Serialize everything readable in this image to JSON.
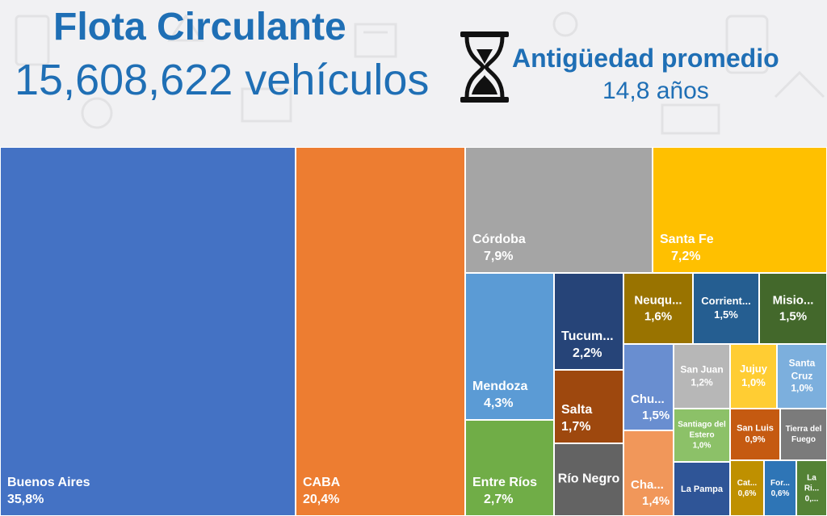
{
  "header": {
    "title": "Flota Circulante",
    "total": "15,608,622 vehículos",
    "age_label": "Antigüedad promedio",
    "age_value": "14,8 años"
  },
  "chart_data": {
    "type": "treemap",
    "unit": "%",
    "items": [
      {
        "name": "Buenos Aires",
        "label": "Buenos Aires",
        "value": 35.8,
        "display": "35,8%",
        "color": "#4472c4"
      },
      {
        "name": "CABA",
        "label": "CABA",
        "value": 20.4,
        "display": "20,4%",
        "color": "#ed7d31"
      },
      {
        "name": "Córdoba",
        "label": "Córdoba",
        "value": 7.9,
        "display": "7,9%",
        "color": "#a5a5a5"
      },
      {
        "name": "Santa Fe",
        "label": "Santa Fe",
        "value": 7.2,
        "display": "7,2%",
        "color": "#ffc000"
      },
      {
        "name": "Mendoza",
        "label": "Mendoza",
        "value": 4.3,
        "display": "4,3%",
        "color": "#5b9bd5"
      },
      {
        "name": "Entre Ríos",
        "label": "Entre Ríos",
        "value": 2.7,
        "display": "2,7%",
        "color": "#70ad47"
      },
      {
        "name": "Tucumán",
        "label": "Tucum...",
        "value": 2.2,
        "display": "2,2%",
        "color": "#264478"
      },
      {
        "name": "Salta",
        "label": "Salta",
        "value": 1.7,
        "display": "1,7%",
        "color": "#9e480e"
      },
      {
        "name": "Río Negro",
        "label": "Río Negro",
        "value": 1.6,
        "display": "",
        "color": "#636363"
      },
      {
        "name": "Neuquén",
        "label": "Neuqu...",
        "value": 1.6,
        "display": "1,6%",
        "color": "#997300"
      },
      {
        "name": "Corrientes",
        "label": "Corrient...",
        "value": 1.5,
        "display": "1,5%",
        "color": "#255e91"
      },
      {
        "name": "Misiones",
        "label": "Misio...",
        "value": 1.5,
        "display": "1,5%",
        "color": "#43682b"
      },
      {
        "name": "Chubut",
        "label": "Chu...",
        "value": 1.5,
        "display": "1,5%",
        "color": "#698ed0"
      },
      {
        "name": "Chaco",
        "label": "Cha...",
        "value": 1.4,
        "display": "1,4%",
        "color": "#f1975a"
      },
      {
        "name": "San Juan",
        "label": "San Juan",
        "value": 1.2,
        "display": "1,2%",
        "color": "#b7b7b7"
      },
      {
        "name": "Jujuy",
        "label": "Jujuy",
        "value": 1.0,
        "display": "1,0%",
        "color": "#ffcd33"
      },
      {
        "name": "Santa Cruz",
        "label": "Santa Cruz",
        "value": 1.0,
        "display": "1,0%",
        "color": "#7cafdd"
      },
      {
        "name": "Santiago del Estero",
        "label": "Santiago del Estero",
        "value": 1.0,
        "display": "1,0%",
        "color": "#8cc168"
      },
      {
        "name": "San Luis",
        "label": "San Luis",
        "value": 0.9,
        "display": "0,9%",
        "color": "#c55a11"
      },
      {
        "name": "Tierra del Fuego",
        "label": "Tierra del Fuego",
        "value": 0.7,
        "display": "",
        "color": "#7b7b7b"
      },
      {
        "name": "La Pampa",
        "label": "La Pampa",
        "value": 0.7,
        "display": "",
        "color": "#2f5597"
      },
      {
        "name": "Catamarca",
        "label": "Cat...",
        "value": 0.6,
        "display": "0,6%",
        "color": "#bf9000"
      },
      {
        "name": "Formosa",
        "label": "For...",
        "value": 0.6,
        "display": "0,6%",
        "color": "#2e75b6"
      },
      {
        "name": "La Rioja",
        "label": "La Ri...",
        "value": 0.5,
        "display": "0,...",
        "color": "#548235"
      }
    ]
  }
}
